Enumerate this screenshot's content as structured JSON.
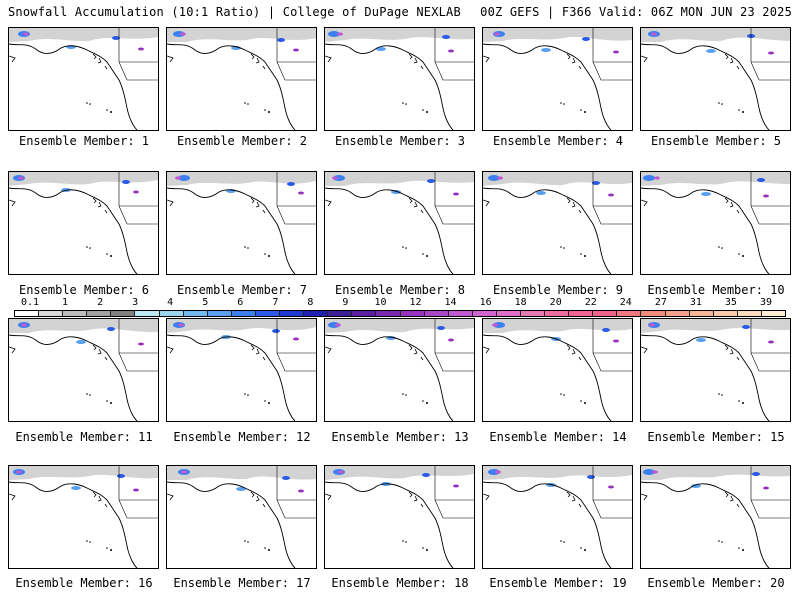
{
  "header": {
    "left_title": "Snowfall Accumulation (10:1 Ratio) | College of DuPage NEXLAB",
    "right_title": "00Z GEFS | F366 Valid: 06Z MON JUN 23 2025"
  },
  "panels": [
    {
      "label": "Ensemble Member: 1"
    },
    {
      "label": "Ensemble Member: 2"
    },
    {
      "label": "Ensemble Member: 3"
    },
    {
      "label": "Ensemble Member: 4"
    },
    {
      "label": "Ensemble Member: 5"
    },
    {
      "label": "Ensemble Member: 6"
    },
    {
      "label": "Ensemble Member: 7"
    },
    {
      "label": "Ensemble Member: 8"
    },
    {
      "label": "Ensemble Member: 9"
    },
    {
      "label": "Ensemble Member: 10"
    },
    {
      "label": "Ensemble Member: 11"
    },
    {
      "label": "Ensemble Member: 12"
    },
    {
      "label": "Ensemble Member: 13"
    },
    {
      "label": "Ensemble Member: 14"
    },
    {
      "label": "Ensemble Member: 15"
    },
    {
      "label": "Ensemble Member: 16"
    },
    {
      "label": "Ensemble Member: 17"
    },
    {
      "label": "Ensemble Member: 18"
    },
    {
      "label": "Ensemble Member: 19"
    },
    {
      "label": "Ensemble Member: 20"
    }
  ],
  "legend": {
    "labels": [
      "0.1",
      "1",
      "2",
      "3",
      "4",
      "5",
      "6",
      "7",
      "8",
      "9",
      "10",
      "12",
      "14",
      "16",
      "18",
      "20",
      "22",
      "24",
      "27",
      "31",
      "35",
      "39"
    ],
    "colors": [
      "#ffffff",
      "#d9d9d9",
      "#bdbdbd",
      "#a0a0a0",
      "#808080",
      "#bfe8f5",
      "#9ad4f0",
      "#74b9f0",
      "#5aa0f0",
      "#3c80f0",
      "#2a5ae6",
      "#1f3ad0",
      "#2020b0",
      "#3c1e96",
      "#5a1ea0",
      "#7828b0",
      "#9632be",
      "#aa46c8",
      "#c05ad2",
      "#d264d2",
      "#e06ec8",
      "#e678b4",
      "#ee6ea0",
      "#f06496",
      "#f0648c",
      "#f07882",
      "#f08c7a",
      "#f4a08c",
      "#f8b496",
      "#fac8aa",
      "#fcdcbe",
      "#feeed6"
    ]
  }
}
